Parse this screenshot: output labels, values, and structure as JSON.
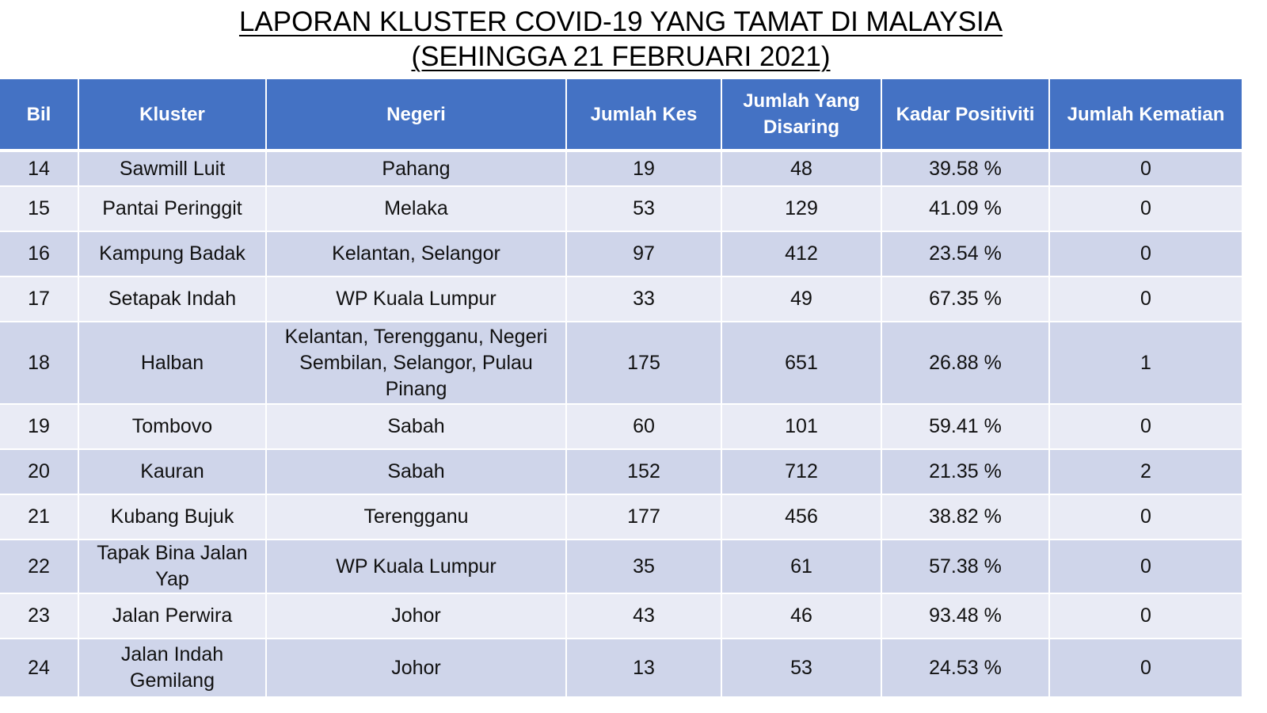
{
  "title": {
    "line1": "LAPORAN KLUSTER COVID-19 YANG TAMAT DI MALAYSIA",
    "line2": "(SEHINGGA  21 FEBRUARI 2021)"
  },
  "colors": {
    "header_bg": "#4472c4",
    "header_text": "#ffffff",
    "row_dark": "#cfd5ea",
    "row_light": "#e9ebf5"
  },
  "table": {
    "headers": {
      "bil": "Bil",
      "kluster": "Kluster",
      "negeri": "Negeri",
      "jumlah_kes": "Jumlah Kes",
      "jumlah_disaring": "Jumlah Yang Disaring",
      "kadar_positiviti": "Kadar Positiviti",
      "jumlah_kematian": "Jumlah Kematian"
    },
    "rows": [
      {
        "bil": "14",
        "kluster": "Sawmill Luit",
        "negeri": "Pahang",
        "kes": "19",
        "disaring": "48",
        "positiviti": "39.58 %",
        "kematian": "0"
      },
      {
        "bil": "15",
        "kluster": "Pantai Peringgit",
        "negeri": "Melaka",
        "kes": "53",
        "disaring": "129",
        "positiviti": "41.09 %",
        "kematian": "0"
      },
      {
        "bil": "16",
        "kluster": "Kampung Badak",
        "negeri": "Kelantan, Selangor",
        "kes": "97",
        "disaring": "412",
        "positiviti": "23.54 %",
        "kematian": "0"
      },
      {
        "bil": "17",
        "kluster": "Setapak Indah",
        "negeri": "WP Kuala Lumpur",
        "kes": "33",
        "disaring": "49",
        "positiviti": "67.35 %",
        "kematian": "0"
      },
      {
        "bil": "18",
        "kluster": "Halban",
        "negeri": "Kelantan, Terengganu, Negeri Sembilan, Selangor, Pulau Pinang",
        "kes": "175",
        "disaring": "651",
        "positiviti": "26.88 %",
        "kematian": "1"
      },
      {
        "bil": "19",
        "kluster": "Tombovo",
        "negeri": "Sabah",
        "kes": "60",
        "disaring": "101",
        "positiviti": "59.41 %",
        "kematian": "0"
      },
      {
        "bil": "20",
        "kluster": "Kauran",
        "negeri": "Sabah",
        "kes": "152",
        "disaring": "712",
        "positiviti": "21.35 %",
        "kematian": "2"
      },
      {
        "bil": "21",
        "kluster": "Kubang Bujuk",
        "negeri": "Terengganu",
        "kes": "177",
        "disaring": "456",
        "positiviti": "38.82 %",
        "kematian": "0"
      },
      {
        "bil": "22",
        "kluster": "Tapak Bina Jalan Yap",
        "negeri": "WP Kuala Lumpur",
        "kes": "35",
        "disaring": "61",
        "positiviti": "57.38 %",
        "kematian": "0"
      },
      {
        "bil": "23",
        "kluster": "Jalan Perwira",
        "negeri": "Johor",
        "kes": "43",
        "disaring": "46",
        "positiviti": "93.48 %",
        "kematian": "0"
      },
      {
        "bil": "24",
        "kluster": "Jalan Indah Gemilang",
        "negeri": "Johor",
        "kes": "13",
        "disaring": "53",
        "positiviti": "24.53 %",
        "kematian": "0"
      }
    ]
  }
}
